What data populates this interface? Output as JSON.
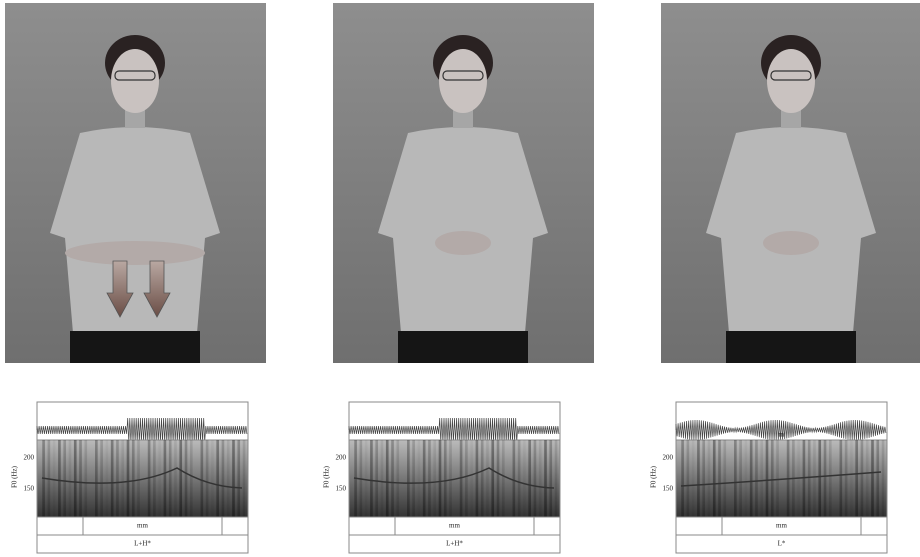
{
  "panels": [
    {
      "f0_label": "F0 (Hz)",
      "f0_ticks": [
        200,
        150
      ],
      "word": "mm",
      "tone": "L+H*"
    },
    {
      "f0_label": "F0 (Hz)",
      "f0_ticks": [
        200,
        150
      ],
      "word": "mm",
      "tone": "L+H*"
    },
    {
      "f0_label": "F0 (Hz)",
      "f0_ticks": [
        200,
        150
      ],
      "waveform_label": "m",
      "word": "mm",
      "tone": "L*"
    }
  ]
}
